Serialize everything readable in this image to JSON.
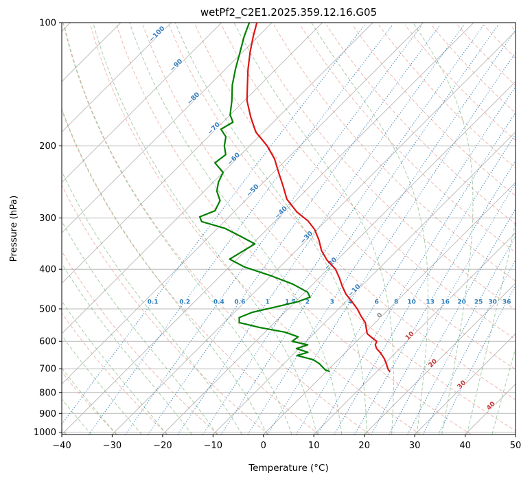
{
  "chart_data": {
    "type": "line",
    "variant": "skew-t-log-p",
    "title": "wetPf2_C2E1.2025.359.12.16.G05",
    "xlabel": "Temperature (°C)",
    "ylabel": "Pressure (hPa)",
    "temp_range": [
      -40,
      50
    ],
    "pressure_range": [
      100,
      1013.25
    ],
    "temp_ticks": [
      -40,
      -30,
      -20,
      -10,
      0,
      10,
      20,
      30,
      40,
      50
    ],
    "pressure_ticks": [
      100,
      200,
      300,
      400,
      500,
      600,
      700,
      800,
      900,
      1000
    ],
    "skew_degrees": 45,
    "grid": true,
    "legend": "none",
    "isotherms": {
      "start": -120,
      "end": 50,
      "step": 10
    },
    "isotherm_labels": [
      {
        "v": -100,
        "p": 110
      },
      {
        "v": -90,
        "p": 131
      },
      {
        "v": -80,
        "p": 158
      },
      {
        "v": -70,
        "p": 187
      },
      {
        "v": -60,
        "p": 222
      },
      {
        "v": -50,
        "p": 265
      },
      {
        "v": -40,
        "p": 300
      },
      {
        "v": -30,
        "p": 345
      },
      {
        "v": -20,
        "p": 400
      },
      {
        "v": -10,
        "p": 465
      },
      {
        "v": 0,
        "p": 535
      },
      {
        "v": 10,
        "p": 600
      },
      {
        "v": 20,
        "p": 700
      },
      {
        "v": 30,
        "p": 790
      },
      {
        "v": 40,
        "p": 890
      }
    ],
    "dry_adiabats": {
      "start": -40,
      "end": 190,
      "step": 10
    },
    "moist_adiabats": {
      "start": -40,
      "end": 50,
      "step": 5
    },
    "mixing_ratios": [
      0.1,
      0.2,
      0.4,
      0.6,
      1,
      1.5,
      2,
      3,
      4,
      6,
      8,
      10,
      13,
      16,
      20,
      25,
      30,
      36
    ],
    "mixing_label_pressure": 480,
    "style": {
      "grid_color": "#b8b8b8",
      "isotherm_color": "#bdbdbd",
      "dry_adiabat_color": "#e08070",
      "dry_adiabat_opacity": 0.55,
      "moist_adiabat_color": "#4f9d4f",
      "moist_adiabat_opacity": 0.5,
      "mixing_color": "#1f77b4",
      "mixing_opacity": 0.75,
      "mixing_label_color": "#2b7bba",
      "label_neg": "#3a7ebf",
      "label_zero": "#8c8c8c",
      "label_pos": "#c23b3b",
      "frame_color": "#000000"
    },
    "series": [
      {
        "name": "temperature",
        "color": "#e01414",
        "points": [
          [
            100,
            -83
          ],
          [
            108,
            -81
          ],
          [
            118,
            -78.5
          ],
          [
            130,
            -75.5
          ],
          [
            142,
            -72.5
          ],
          [
            155,
            -69.5
          ],
          [
            170,
            -65.5
          ],
          [
            185,
            -61.5
          ],
          [
            200,
            -56.5
          ],
          [
            215,
            -52.5
          ],
          [
            232,
            -49
          ],
          [
            250,
            -45.5
          ],
          [
            270,
            -42
          ],
          [
            290,
            -37.5
          ],
          [
            305,
            -33.5
          ],
          [
            320,
            -30.5
          ],
          [
            340,
            -27.5
          ],
          [
            360,
            -25
          ],
          [
            380,
            -22
          ],
          [
            400,
            -18.5
          ],
          [
            420,
            -16
          ],
          [
            440,
            -13.8
          ],
          [
            460,
            -11.5
          ],
          [
            480,
            -8.8
          ],
          [
            500,
            -6.3
          ],
          [
            520,
            -4.2
          ],
          [
            540,
            -2
          ],
          [
            560,
            -0.5
          ],
          [
            575,
            0.6
          ],
          [
            590,
            2.6
          ],
          [
            600,
            4
          ],
          [
            612,
            4.4
          ],
          [
            625,
            5.4
          ],
          [
            640,
            7
          ],
          [
            660,
            8.8
          ],
          [
            680,
            10.3
          ],
          [
            695,
            11.3
          ],
          [
            705,
            12
          ],
          [
            710,
            12.5
          ]
        ]
      },
      {
        "name": "dewpoint",
        "color": "#008000",
        "points": [
          [
            100,
            -84.5
          ],
          [
            108,
            -82.8
          ],
          [
            118,
            -80.5
          ],
          [
            130,
            -78
          ],
          [
            142,
            -75.5
          ],
          [
            155,
            -72.5
          ],
          [
            168,
            -70
          ],
          [
            175,
            -68
          ],
          [
            182,
            -69
          ],
          [
            190,
            -66.5
          ],
          [
            200,
            -65
          ],
          [
            210,
            -63
          ],
          [
            220,
            -63.5
          ],
          [
            232,
            -60
          ],
          [
            245,
            -59
          ],
          [
            258,
            -57.5
          ],
          [
            272,
            -55
          ],
          [
            288,
            -54
          ],
          [
            298,
            -55.8
          ],
          [
            306,
            -54.5
          ],
          [
            318,
            -48.5
          ],
          [
            332,
            -44
          ],
          [
            347,
            -39.5
          ],
          [
            362,
            -40.5
          ],
          [
            378,
            -41.5
          ],
          [
            395,
            -37
          ],
          [
            415,
            -30
          ],
          [
            435,
            -24
          ],
          [
            455,
            -19.5
          ],
          [
            468,
            -18
          ],
          [
            480,
            -19.5
          ],
          [
            495,
            -23
          ],
          [
            510,
            -26.5
          ],
          [
            525,
            -28
          ],
          [
            540,
            -27
          ],
          [
            555,
            -22
          ],
          [
            570,
            -16
          ],
          [
            585,
            -12.5
          ],
          [
            600,
            -12.8
          ],
          [
            612,
            -9
          ],
          [
            625,
            -10.5
          ],
          [
            638,
            -7.5
          ],
          [
            650,
            -9
          ],
          [
            665,
            -5
          ],
          [
            680,
            -3
          ],
          [
            695,
            -1.5
          ],
          [
            705,
            -0.5
          ],
          [
            710,
            0.5
          ]
        ]
      }
    ]
  }
}
